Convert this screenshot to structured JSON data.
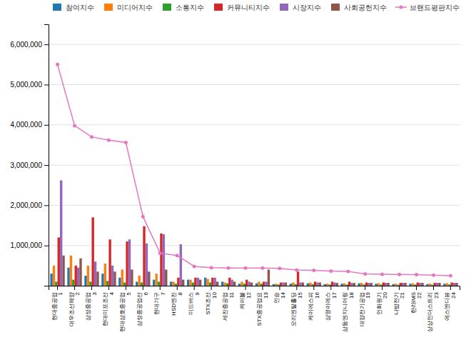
{
  "chart_data": {
    "type": "bar",
    "categories": [
      "현대중공업\n1",
      "대우조선해양\n2",
      "삼성중공업\n3",
      "현대미포조선\n4",
      "현대삼호중공업\n5",
      "삼성중공업선\n6",
      "현대가구\n7",
      "HSD엔진\n8",
      "미드버스\n9",
      "STX조선\n10",
      "세진중공업\n11",
      "케이블\n12",
      "STX중공업요\n13",
      "인승\n14",
      "오리엔탈홀딩\n15",
      "케이에스피\n16",
      "삼영이에스\n17",
      "삼동엔지니어링\n18",
      "대양전기공업\n19",
      "인화원기\n20",
      "나밥전기\n21",
      "한라IMS\n22",
      "상상인더스트리\n23",
      "에스엔디뷰\n24"
    ],
    "series": [
      {
        "name": "참여지수",
        "values": [
          300000,
          450000,
          250000,
          300000,
          200000,
          100000,
          150000,
          100000,
          150000,
          200000,
          100000,
          50000,
          60000,
          40000,
          50000,
          60000,
          40000,
          50000,
          60000,
          50000,
          40000,
          50000,
          40000,
          50000
        ]
      },
      {
        "name": "미디어지수",
        "values": [
          500000,
          750000,
          500000,
          550000,
          400000,
          250000,
          300000,
          100000,
          150000,
          170000,
          80000,
          100000,
          100000,
          50000,
          80000,
          80000,
          50000,
          60000,
          70000,
          60000,
          50000,
          60000,
          50000,
          60000
        ]
      },
      {
        "name": "소통지수",
        "values": [
          100000,
          150000,
          100000,
          120000,
          80000,
          80000,
          100000,
          50000,
          80000,
          80000,
          60000,
          50000,
          50000,
          30000,
          40000,
          40000,
          30000,
          30000,
          30000,
          30000,
          25000,
          30000,
          25000,
          30000
        ]
      },
      {
        "name": "커뮤니티지수",
        "values": [
          1200000,
          500000,
          1700000,
          1150000,
          1100000,
          1480000,
          1300000,
          200000,
          200000,
          200000,
          200000,
          150000,
          100000,
          80000,
          350000,
          100000,
          100000,
          100000,
          80000,
          80000,
          70000,
          80000,
          70000,
          80000
        ]
      },
      {
        "name": "시장지수",
        "values": [
          2620000,
          450000,
          600000,
          500000,
          1150000,
          1050000,
          1280000,
          1030000,
          200000,
          200000,
          150000,
          100000,
          100000,
          80000,
          80000,
          80000,
          80000,
          70000,
          70000,
          70000,
          70000,
          70000,
          70000,
          70000
        ]
      },
      {
        "name": "사회공헌지수",
        "values": [
          750000,
          680000,
          350000,
          350000,
          400000,
          350000,
          400000,
          150000,
          150000,
          100000,
          100000,
          80000,
          400000,
          80000,
          80000,
          80000,
          70000,
          70000,
          70000,
          70000,
          70000,
          70000,
          70000,
          70000
        ]
      },
      {
        "name": "브랜드평판지수",
        "type": "line",
        "marker": "circle",
        "values": [
          5500000,
          3980000,
          3700000,
          3620000,
          3560000,
          1720000,
          810000,
          750000,
          480000,
          450000,
          440000,
          440000,
          440000,
          430000,
          390000,
          380000,
          365000,
          355000,
          295000,
          285000,
          280000,
          275000,
          260000,
          250000
        ]
      }
    ],
    "ylim": [
      0,
      6500000
    ],
    "yticks": [
      {
        "value": 1000000,
        "label": "1,000,000"
      },
      {
        "value": 2000000,
        "label": "2,000,000"
      },
      {
        "value": 3000000,
        "label": "3,000,000"
      },
      {
        "value": 4000000,
        "label": "4,000,000"
      },
      {
        "value": 5000000,
        "label": "5,000,000"
      },
      {
        "value": 6000000,
        "label": "6,000,000"
      }
    ],
    "grid": true,
    "legend": "upper right"
  }
}
